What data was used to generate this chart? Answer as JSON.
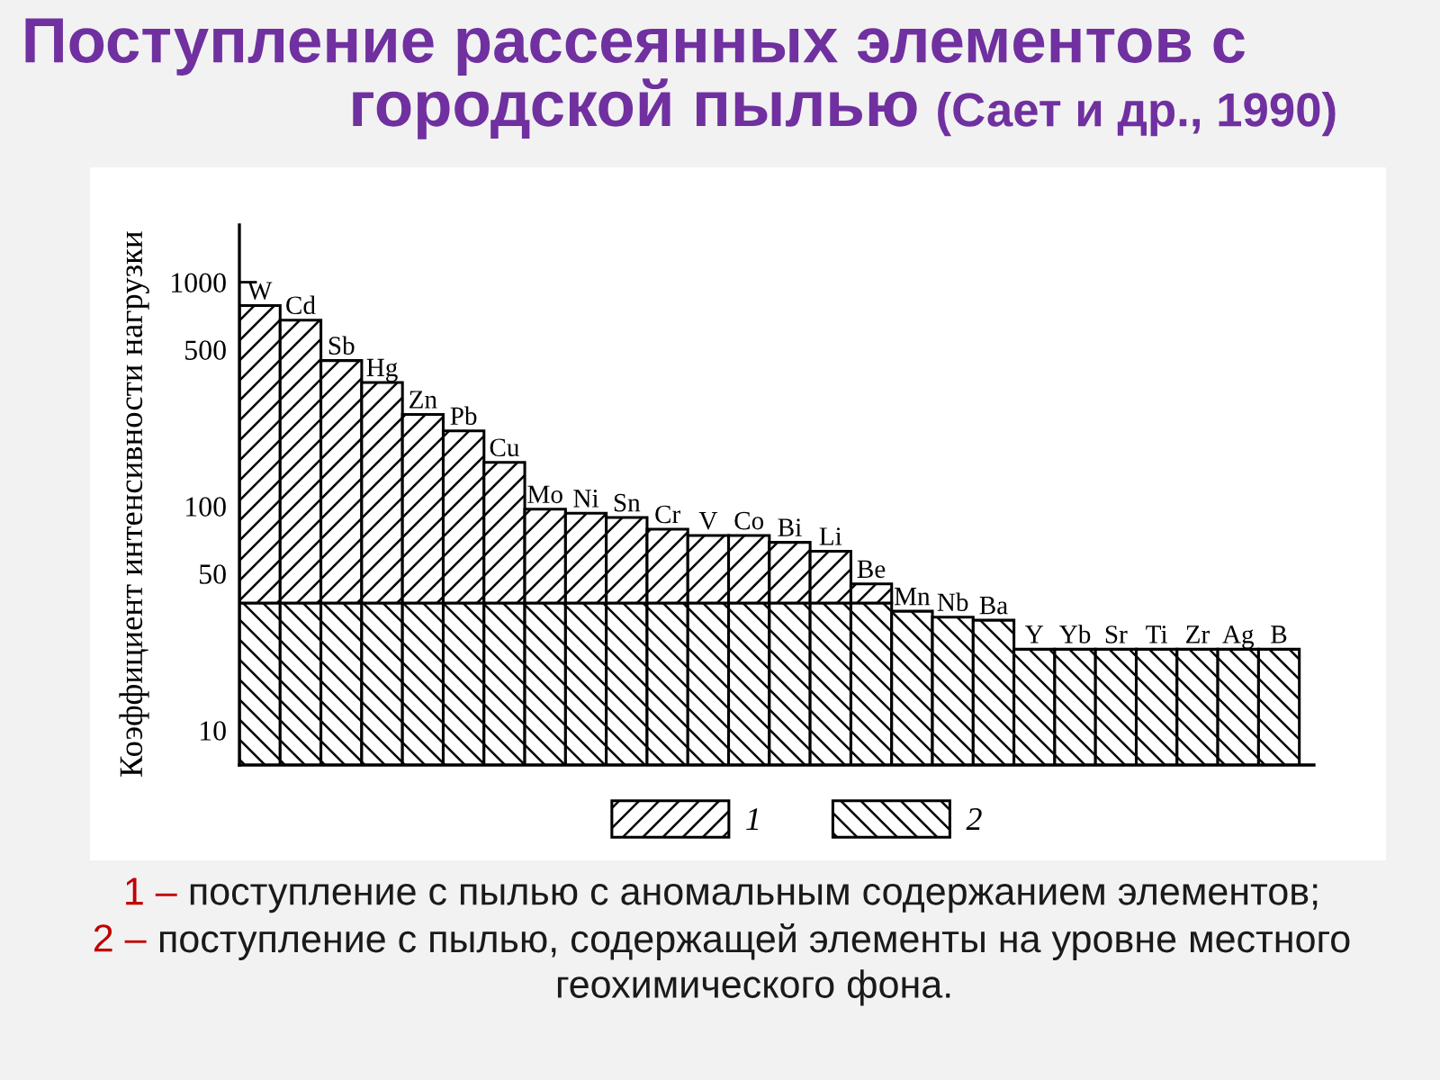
{
  "chart_data": {
    "type": "bar",
    "title": "Поступление рассеянных элементов с городской пылью",
    "subtitle": "(Сает и др., 1990)",
    "ylabel": "Коэффициент интенсивности нагрузки",
    "categories": [
      "W",
      "Cd",
      "Sb",
      "Hg",
      "Zn",
      "Pb",
      "Cu",
      "Mo",
      "Ni",
      "Sn",
      "Cr",
      "V",
      "Co",
      "Bi",
      "Li",
      "Be",
      "Mn",
      "Nb",
      "Ba",
      "Y",
      "Yb",
      "Sr",
      "Ti",
      "Zr",
      "Ag",
      "B"
    ],
    "stacked": true,
    "series": [
      {
        "name": "2",
        "color": "#000000",
        "values": [
          37,
          37,
          37,
          37,
          37,
          37,
          37,
          37,
          37,
          37,
          37,
          37,
          37,
          37,
          37,
          37,
          34,
          32,
          31,
          23,
          23,
          23,
          23,
          23,
          23,
          23
        ]
      },
      {
        "name": "1",
        "color": "#000000",
        "values": [
          750,
          640,
          410,
          320,
          220,
          180,
          120,
          60,
          56,
          52,
          42,
          37,
          37,
          32,
          26,
          8,
          null,
          null,
          null,
          null,
          null,
          null,
          null,
          null,
          null,
          null
        ]
      }
    ],
    "log": true,
    "ylim": [
      7,
      1800
    ],
    "yticks": [
      10,
      50,
      100,
      500,
      1000
    ],
    "tick_labels": "y",
    "legend": "bottom",
    "annotations": [
      "1 – поступление с пылью с аномальным содержанием элементов;",
      "2 – поступление с пылью, содержащей элементы на уровне местного геохимического фона."
    ]
  }
}
